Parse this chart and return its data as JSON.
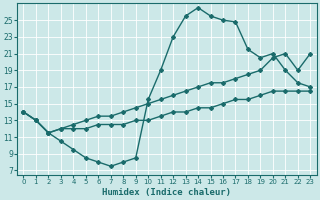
{
  "xlabel": "Humidex (Indice chaleur)",
  "bg_color": "#cce8e8",
  "line_color": "#1a6b6b",
  "grid_color": "#aacccc",
  "xlim": [
    -0.5,
    23.5
  ],
  "ylim": [
    6.5,
    27
  ],
  "xticks": [
    0,
    1,
    2,
    3,
    4,
    5,
    6,
    7,
    8,
    9,
    10,
    11,
    12,
    13,
    14,
    15,
    16,
    17,
    18,
    19,
    20,
    21,
    22,
    23
  ],
  "yticks": [
    7,
    9,
    11,
    13,
    15,
    17,
    19,
    21,
    23,
    25
  ],
  "line1_x": [
    0,
    1,
    2,
    3,
    4,
    5,
    6,
    7,
    8,
    9,
    10,
    11,
    12,
    13,
    14,
    15,
    16,
    17,
    18,
    19,
    20,
    21,
    22,
    23
  ],
  "line1_y": [
    14.0,
    13.0,
    11.5,
    10.5,
    9.5,
    8.5,
    8.0,
    7.5,
    8.0,
    8.5,
    15.5,
    19.0,
    23.0,
    25.5,
    26.5,
    25.5,
    25.0,
    24.8,
    21.5,
    20.5,
    21.0,
    19.0,
    17.5,
    17.0
  ],
  "line2_x": [
    0,
    1,
    2,
    3,
    4,
    5,
    6,
    7,
    8,
    9,
    10,
    11,
    12,
    13,
    14,
    15,
    16,
    17,
    18,
    19,
    20,
    21,
    22,
    23
  ],
  "line2_y": [
    14.0,
    13.0,
    11.5,
    12.0,
    12.5,
    13.0,
    13.5,
    13.5,
    14.0,
    14.5,
    15.0,
    15.5,
    16.0,
    16.5,
    17.0,
    17.5,
    17.5,
    18.0,
    18.5,
    19.0,
    20.5,
    21.0,
    19.0,
    21.0
  ],
  "line3_x": [
    0,
    1,
    2,
    3,
    4,
    5,
    6,
    7,
    8,
    9,
    10,
    11,
    12,
    13,
    14,
    15,
    16,
    17,
    18,
    19,
    20,
    21,
    22,
    23
  ],
  "line3_y": [
    14.0,
    13.0,
    11.5,
    12.0,
    12.0,
    12.0,
    12.5,
    12.5,
    12.5,
    13.0,
    13.0,
    13.5,
    14.0,
    14.0,
    14.5,
    14.5,
    15.0,
    15.5,
    15.5,
    16.0,
    16.5,
    16.5,
    16.5,
    16.5
  ]
}
